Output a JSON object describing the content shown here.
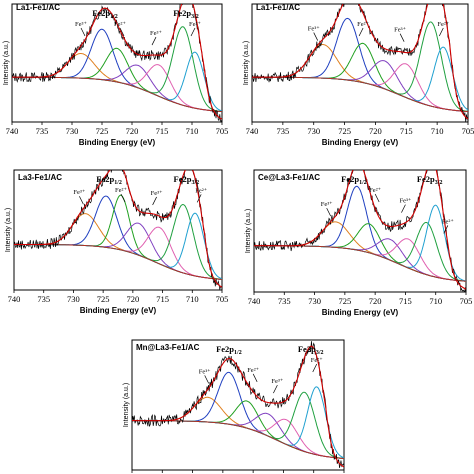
{
  "xlabel": "Binding Energy (eV)",
  "ylabel": "Intensity (a.u.)",
  "chart_data": [
    {
      "type": "line",
      "title": "La1-Fe1/AC",
      "xlim": [
        740,
        705
      ],
      "xticks": [
        "740",
        "735",
        "730",
        "725",
        "720",
        "715",
        "710",
        "705"
      ],
      "peaks": [
        {
          "label": "Fe³⁺",
          "x": 728.5
        },
        {
          "label": "Fe2p1/2",
          "x": 724.5
        },
        {
          "label": "Fe²⁺",
          "x": 722
        },
        {
          "label": "Fe³⁺",
          "x": 716
        },
        {
          "label": "Fe2p3/2",
          "x": 711
        },
        {
          "label": "Fe²⁺",
          "x": 709.5
        }
      ],
      "components": [
        {
          "center": 728.5,
          "height": 0.22,
          "width": 2.2,
          "color": "#e08020"
        },
        {
          "center": 725.0,
          "height": 0.45,
          "width": 1.8,
          "color": "#2040c0"
        },
        {
          "center": 722.5,
          "height": 0.3,
          "width": 1.8,
          "color": "#20a020"
        },
        {
          "center": 719.0,
          "height": 0.2,
          "width": 2.0,
          "color": "#8040c0"
        },
        {
          "center": 715.5,
          "height": 0.28,
          "width": 1.9,
          "color": "#e060b0"
        },
        {
          "center": 711.5,
          "height": 0.7,
          "width": 1.7,
          "color": "#20a040"
        },
        {
          "center": 709.5,
          "height": 0.5,
          "width": 1.5,
          "color": "#20a0d0"
        }
      ]
    },
    {
      "type": "line",
      "title": "La1-Fe1/AC",
      "xlim": [
        740,
        705
      ],
      "xticks": [
        "740",
        "735",
        "730",
        "725",
        "720",
        "715",
        "710",
        "705"
      ],
      "peaks": [
        {
          "label": "Fe³⁺",
          "x": 730
        },
        {
          "label": "Fe²⁺",
          "x": 722
        },
        {
          "label": "Fe³⁺",
          "x": 716
        },
        {
          "label": "Fe²⁺",
          "x": 709
        }
      ],
      "components": [
        {
          "center": 728.5,
          "height": 0.3,
          "width": 2.2,
          "color": "#e08020"
        },
        {
          "center": 724.5,
          "height": 0.55,
          "width": 1.8,
          "color": "#2040c0"
        },
        {
          "center": 722.0,
          "height": 0.35,
          "width": 1.8,
          "color": "#20a020"
        },
        {
          "center": 718.5,
          "height": 0.25,
          "width": 2.0,
          "color": "#8040c0"
        },
        {
          "center": 715.0,
          "height": 0.3,
          "width": 1.9,
          "color": "#e060b0"
        },
        {
          "center": 711.0,
          "height": 0.75,
          "width": 1.7,
          "color": "#20a040"
        },
        {
          "center": 709.0,
          "height": 0.55,
          "width": 1.5,
          "color": "#20a0d0"
        }
      ]
    },
    {
      "type": "line",
      "title": "La3-Fe1/AC",
      "xlim": [
        740,
        705
      ],
      "xticks": [
        "740",
        "735",
        "730",
        "725",
        "720",
        "715",
        "710",
        "705"
      ],
      "peaks": [
        {
          "label": "Fe³⁺",
          "x": 729
        },
        {
          "label": "Fe2p1/2",
          "x": 724
        },
        {
          "label": "Fe²⁺",
          "x": 722
        },
        {
          "label": "Fe³⁺",
          "x": 716
        },
        {
          "label": "Fe2p3/2",
          "x": 711
        },
        {
          "label": "Fe²⁺",
          "x": 708.5
        }
      ],
      "components": [
        {
          "center": 728.0,
          "height": 0.28,
          "width": 2.2,
          "color": "#e08020"
        },
        {
          "center": 724.5,
          "height": 0.45,
          "width": 1.8,
          "color": "#2040c0"
        },
        {
          "center": 722.0,
          "height": 0.48,
          "width": 1.4,
          "color": "#20a020"
        },
        {
          "center": 719.0,
          "height": 0.28,
          "width": 2.0,
          "color": "#8040c0"
        },
        {
          "center": 715.5,
          "height": 0.32,
          "width": 1.9,
          "color": "#e060b0"
        },
        {
          "center": 711.5,
          "height": 0.6,
          "width": 1.7,
          "color": "#20a040"
        },
        {
          "center": 709.5,
          "height": 0.55,
          "width": 1.5,
          "color": "#20a0d0"
        }
      ]
    },
    {
      "type": "line",
      "title": "Ce@La3-Fe1/AC",
      "xlim": [
        740,
        705
      ],
      "xticks": [
        "740",
        "735",
        "730",
        "725",
        "720",
        "715",
        "710",
        "705"
      ],
      "peaks": [
        {
          "label": "Fe³⁺",
          "x": 728
        },
        {
          "label": "Fe2p1/2",
          "x": 723.5
        },
        {
          "label": "Fe²⁺",
          "x": 720
        },
        {
          "label": "Fe³⁺",
          "x": 715
        },
        {
          "label": "Fe2p3/2",
          "x": 711
        },
        {
          "label": "Fe²⁺",
          "x": 708
        }
      ],
      "components": [
        {
          "center": 726.5,
          "height": 0.22,
          "width": 2.2,
          "color": "#e08020"
        },
        {
          "center": 723.0,
          "height": 0.55,
          "width": 1.6,
          "color": "#2040c0"
        },
        {
          "center": 721.0,
          "height": 0.25,
          "width": 1.8,
          "color": "#20a020"
        },
        {
          "center": 717.5,
          "height": 0.18,
          "width": 2.0,
          "color": "#8040c0"
        },
        {
          "center": 714.5,
          "height": 0.25,
          "width": 1.9,
          "color": "#e060b0"
        },
        {
          "center": 711.5,
          "height": 0.45,
          "width": 1.7,
          "color": "#20a040"
        },
        {
          "center": 710.0,
          "height": 0.62,
          "width": 1.5,
          "color": "#20a0d0"
        }
      ]
    },
    {
      "type": "line",
      "title": "Mn@La3-Fe1/AC",
      "xlim": [
        740,
        705
      ],
      "xticks": [
        "740",
        "735",
        "730",
        "725",
        "720",
        "715",
        "710",
        "705"
      ],
      "peaks": [
        {
          "label": "Fe³⁺",
          "x": 728
        },
        {
          "label": "Fe2p1/2",
          "x": 724
        },
        {
          "label": "Fe²⁺",
          "x": 720
        },
        {
          "label": "Fe³⁺",
          "x": 716
        },
        {
          "label": "Fe2p3/2",
          "x": 710.5
        },
        {
          "label": "Fe²⁺",
          "x": 709.5
        }
      ],
      "components": [
        {
          "center": 727.5,
          "height": 0.2,
          "width": 2.2,
          "color": "#e08020"
        },
        {
          "center": 724.0,
          "height": 0.42,
          "width": 1.8,
          "color": "#2040c0"
        },
        {
          "center": 721.0,
          "height": 0.22,
          "width": 1.8,
          "color": "#20a020"
        },
        {
          "center": 717.5,
          "height": 0.18,
          "width": 2.0,
          "color": "#8040c0"
        },
        {
          "center": 714.5,
          "height": 0.2,
          "width": 1.9,
          "color": "#e060b0"
        },
        {
          "center": 711.5,
          "height": 0.48,
          "width": 1.7,
          "color": "#20a040"
        },
        {
          "center": 709.5,
          "height": 0.55,
          "width": 1.5,
          "color": "#20a0d0"
        }
      ]
    }
  ]
}
